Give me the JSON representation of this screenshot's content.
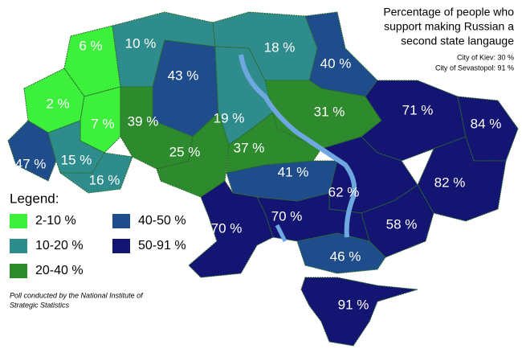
{
  "title": {
    "lines": [
      "Percentage of people who",
      "support making Russian a",
      "second state langauge"
    ],
    "notes": [
      "City of Kiev: 30 %",
      "City of Sevastopol: 91 %"
    ]
  },
  "regions": [
    {
      "label": "6 %",
      "color": "#3cf03c"
    },
    {
      "label": "10 %",
      "color": "#2f8c8c"
    },
    {
      "label": "43 %",
      "color": "#1f4d8c"
    },
    {
      "label": "18 %",
      "color": "#2f8c8c"
    },
    {
      "label": "40 %",
      "color": "#1f4d8c"
    },
    {
      "label": "2 %",
      "color": "#3cf03c"
    },
    {
      "label": "7 %",
      "color": "#3cf03c"
    },
    {
      "label": "39 %",
      "color": "#2d8a2d"
    },
    {
      "label": "19 %",
      "color": "#2f8c8c"
    },
    {
      "label": "31 %",
      "color": "#2d8a2d"
    },
    {
      "label": "71 %",
      "color": "#141473"
    },
    {
      "label": "84 %",
      "color": "#141473"
    },
    {
      "label": "47 %",
      "color": "#1f4d8c"
    },
    {
      "label": "15 %",
      "color": "#2f8c8c"
    },
    {
      "label": "16 %",
      "color": "#2f8c8c"
    },
    {
      "label": "25 %",
      "color": "#2d8a2d"
    },
    {
      "label": "37 %",
      "color": "#2d8a2d"
    },
    {
      "label": "41 %",
      "color": "#1f4d8c"
    },
    {
      "label": "62 %",
      "color": "#141473"
    },
    {
      "label": "82 %",
      "color": "#141473"
    },
    {
      "label": "70 %",
      "color": "#141473"
    },
    {
      "label": "70 %",
      "color": "#141473"
    },
    {
      "label": "58 %",
      "color": "#141473"
    },
    {
      "label": "46 %",
      "color": "#1f4d8c"
    },
    {
      "label": "91 %",
      "color": "#141473"
    }
  ],
  "legend": {
    "heading": "Legend:",
    "items": [
      {
        "label": "2-10 %",
        "color": "#3cf03c"
      },
      {
        "label": "10-20 %",
        "color": "#2f8c8c"
      },
      {
        "label": "20-40 %",
        "color": "#2d8a2d"
      },
      {
        "label": "40-50 %",
        "color": "#1f4d8c"
      },
      {
        "label": "50-91 %",
        "color": "#141473"
      }
    ]
  },
  "footnote": [
    "Poll conducted by the National Institute of",
    "Strategic Statistics"
  ]
}
